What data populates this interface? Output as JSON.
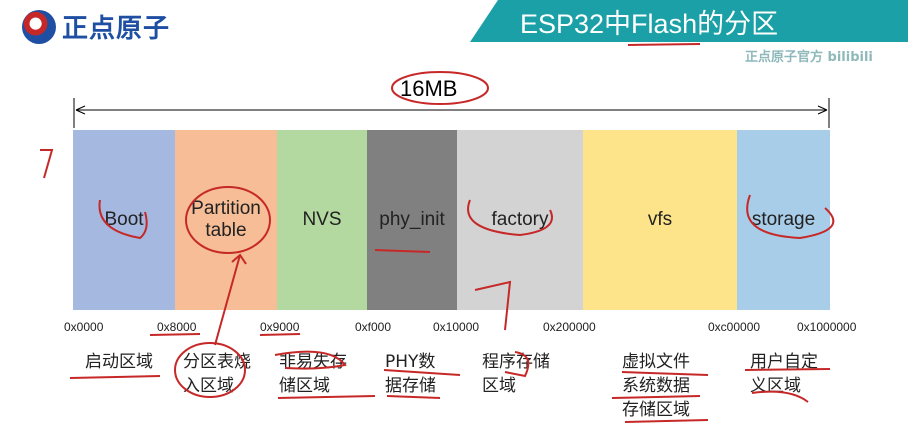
{
  "logo": {
    "text": "正点原子"
  },
  "title": "ESP32中Flash的分区",
  "watermark": "正点原子官方 bilibili",
  "total_size": "16MB",
  "partitions": [
    {
      "label": "Boot",
      "color": "#a4b8e0",
      "description": "启动区域"
    },
    {
      "label": "Partition table",
      "color": "#f6bd96",
      "description": "分区表烧入区域"
    },
    {
      "label": "NVS",
      "color": "#b3d9a0",
      "description": "非易失存储区域"
    },
    {
      "label": "phy_init",
      "color": "#808080",
      "description": "PHY数据存储"
    },
    {
      "label": "factory",
      "color": "#d3d3d3",
      "description": "程序存储区域"
    },
    {
      "label": "vfs",
      "color": "#fde48a",
      "description": "虚拟文件系统数据存储区域"
    },
    {
      "label": "storage",
      "color": "#a8cde8",
      "description": "用户自定义区域"
    }
  ],
  "addresses": [
    "0x0000",
    "0x8000",
    "0x9000",
    "0xf000",
    "0x10000",
    "0x200000",
    "0xc00000",
    "0x1000000"
  ],
  "annotation_color": "#c62828"
}
